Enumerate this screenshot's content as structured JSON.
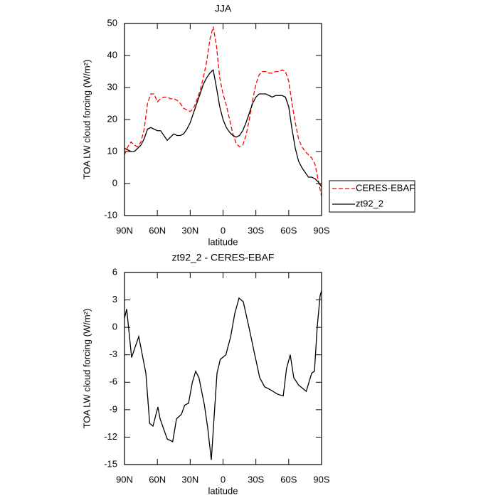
{
  "chart_data": [
    {
      "type": "line",
      "title": "JJA",
      "xlabel": "latitude",
      "ylabel": "TOA LW cloud forcing (W/m²)",
      "xlim": [
        90,
        -90
      ],
      "xticks": [
        {
          "value": 90,
          "label": "90N"
        },
        {
          "value": 60,
          "label": "60N"
        },
        {
          "value": 30,
          "label": "30N"
        },
        0,
        {
          "value": -30,
          "label": "30S"
        },
        {
          "value": -60,
          "label": "60S"
        },
        {
          "value": -90,
          "label": "90S"
        }
      ],
      "ylim": [
        -10,
        50
      ],
      "yticks": [
        -10,
        0,
        10,
        20,
        30,
        40,
        50
      ],
      "legend": "right",
      "x": [
        90,
        87,
        84,
        81,
        78,
        75,
        72,
        69,
        66,
        63,
        60,
        57,
        54,
        51,
        48,
        45,
        42,
        39,
        36,
        33,
        30,
        27,
        24,
        21,
        18,
        15,
        12,
        9,
        6,
        3,
        0,
        -3,
        -6,
        -9,
        -12,
        -15,
        -18,
        -21,
        -24,
        -27,
        -30,
        -33,
        -36,
        -39,
        -42,
        -45,
        -48,
        -51,
        -54,
        -57,
        -60,
        -63,
        -66,
        -69,
        -72,
        -75,
        -78,
        -81,
        -84,
        -87,
        -90
      ],
      "series": [
        {
          "name": "CERES-EBAF",
          "color": "#ff0000",
          "linestyle": "dashed",
          "values": [
            9,
            11.5,
            13,
            12,
            11.5,
            13,
            17,
            25,
            28,
            28,
            25.5,
            26.5,
            27,
            27,
            26.5,
            26.5,
            26,
            25,
            23.5,
            23,
            22.5,
            23.5,
            26,
            29,
            33,
            38,
            45,
            49,
            43,
            33,
            28,
            24.5,
            20,
            15.5,
            12.5,
            11.5,
            12,
            15,
            20,
            26,
            31,
            34,
            35,
            35,
            34.5,
            34.5,
            35,
            35,
            35.5,
            35,
            32,
            25,
            19,
            14,
            11.5,
            10,
            9,
            8,
            6,
            1,
            -4
          ]
        },
        {
          "name": "zt92_2",
          "color": "#000000",
          "linestyle": "solid",
          "values": [
            11,
            10.5,
            10,
            10,
            11,
            12,
            14,
            17,
            17.5,
            17,
            16.5,
            16.5,
            15,
            13.5,
            14.5,
            15.5,
            15,
            15,
            15.5,
            17,
            19,
            22,
            25,
            28,
            31,
            33,
            34.5,
            35.5,
            30,
            24,
            20,
            17.5,
            16,
            15,
            14.5,
            15,
            16.5,
            19,
            22,
            25,
            27,
            28,
            28,
            28,
            27.5,
            27,
            27.5,
            27.5,
            27.5,
            27,
            24,
            17,
            11,
            7,
            5,
            3.5,
            2,
            2,
            1.5,
            0.5,
            -1
          ]
        }
      ]
    },
    {
      "type": "line",
      "title": "zt92_2 - CERES-EBAF",
      "xlabel": "latitude",
      "ylabel": "TOA LW cloud forcing (W/m²)",
      "xlim": [
        90,
        -90
      ],
      "xticks": [
        {
          "value": 90,
          "label": "90N"
        },
        {
          "value": 60,
          "label": "60N"
        },
        {
          "value": 30,
          "label": "30N"
        },
        0,
        {
          "value": -30,
          "label": "30S"
        },
        {
          "value": -60,
          "label": "60S"
        },
        {
          "value": -90,
          "label": "90S"
        }
      ],
      "ylim": [
        -15,
        6
      ],
      "yticks": [
        -15,
        -12,
        -9,
        -6,
        -3,
        0,
        3,
        6
      ],
      "x": [
        90,
        88,
        83.5,
        77,
        70.5,
        67,
        64,
        59.5,
        57.5,
        51,
        46,
        42.5,
        38,
        35,
        31.5,
        28,
        25,
        22,
        17,
        14,
        10.7,
        8.8,
        5.5,
        2.5,
        -2.6,
        -7,
        -10.7,
        -14.6,
        -18.5,
        -23.7,
        -29,
        -33.5,
        -38,
        -43,
        -49.7,
        -55,
        -58,
        -61.4,
        -64.6,
        -69,
        -72,
        -76,
        -81,
        -83.5,
        -86,
        -88.7,
        -90
      ],
      "series": [
        {
          "name": "zt92_2 - CERES-EBAF",
          "color": "#000000",
          "linestyle": "solid",
          "values": [
            1,
            2,
            -3.3,
            -1,
            -5,
            -10.5,
            -10.8,
            -8.7,
            -10,
            -12.2,
            -12.5,
            -10,
            -9.5,
            -8.5,
            -8.3,
            -6,
            -4.8,
            -5.5,
            -8.5,
            -11,
            -14.5,
            -11,
            -5,
            -3.5,
            -3,
            -1,
            1.5,
            3.2,
            2.8,
            0,
            -3,
            -5.5,
            -6.5,
            -6.8,
            -7.3,
            -7.5,
            -4.5,
            -3,
            -5.5,
            -6.3,
            -6.6,
            -7,
            -5,
            -4.8,
            0,
            3.5,
            4
          ]
        }
      ]
    }
  ]
}
